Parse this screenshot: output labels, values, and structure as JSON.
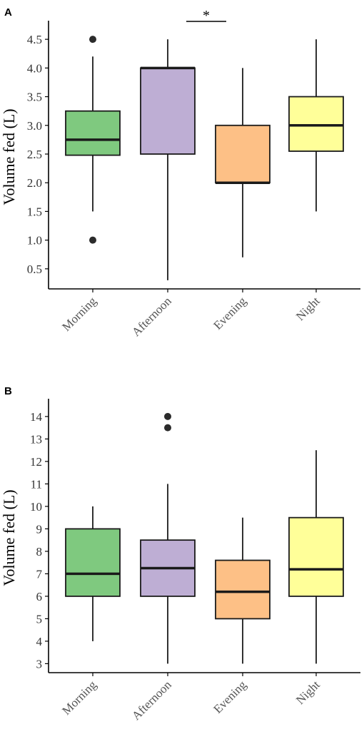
{
  "colors": {
    "Morning": "#7fc97f",
    "Afternoon": "#beaed4",
    "Evening": "#fdc086",
    "Night": "#ffff99"
  },
  "chart_data": [
    {
      "type": "box",
      "panel": "A",
      "ylabel": "Volume fed (L)",
      "xlabel": "",
      "categories": [
        "Morning",
        "Afternoon",
        "Evening",
        "Night"
      ],
      "ylim": [
        0.15,
        4.75
      ],
      "yticks": [
        0.5,
        1.0,
        1.5,
        2.0,
        2.5,
        3.0,
        3.5,
        4.0,
        4.5
      ],
      "ytick_labels": [
        "0.5",
        "1.0",
        "1.5",
        "2.0",
        "2.5",
        "3.0",
        "3.5",
        "4.0",
        "4.5"
      ],
      "boxes": [
        {
          "category": "Morning",
          "min": 1.5,
          "q1": 2.48,
          "median": 2.75,
          "q3": 3.25,
          "max": 4.2,
          "outliers": [
            4.5,
            1.0
          ]
        },
        {
          "category": "Afternoon",
          "min": 0.3,
          "q1": 2.5,
          "median": 4.0,
          "q3": 4.0,
          "max": 4.5,
          "outliers": []
        },
        {
          "category": "Evening",
          "min": 0.7,
          "q1": 2.0,
          "median": 2.0,
          "q3": 3.0,
          "max": 4.0,
          "outliers": []
        },
        {
          "category": "Night",
          "min": 1.5,
          "q1": 2.55,
          "median": 3.0,
          "q3": 3.5,
          "max": 4.5,
          "outliers": []
        }
      ],
      "annotation": {
        "text": "*",
        "from": "Afternoon",
        "to": "Evening"
      },
      "grid": false
    },
    {
      "type": "box",
      "panel": "B",
      "ylabel": "Volume fed (L)",
      "xlabel": "",
      "categories": [
        "Morning",
        "Afternoon",
        "Evening",
        "Night"
      ],
      "ylim": [
        2.6,
        14.6
      ],
      "yticks": [
        3,
        4,
        5,
        6,
        7,
        8,
        9,
        10,
        11,
        12,
        13,
        14
      ],
      "ytick_labels": [
        "3",
        "4",
        "5",
        "6",
        "7",
        "8",
        "9",
        "10",
        "11",
        "12",
        "13",
        "14"
      ],
      "boxes": [
        {
          "category": "Morning",
          "min": 4.0,
          "q1": 6.0,
          "median": 7.0,
          "q3": 9.0,
          "max": 10.0,
          "outliers": []
        },
        {
          "category": "Afternoon",
          "min": 3.0,
          "q1": 6.0,
          "median": 7.25,
          "q3": 8.5,
          "max": 11.0,
          "outliers": [
            14.0,
            13.5
          ]
        },
        {
          "category": "Evening",
          "min": 3.0,
          "q1": 5.0,
          "median": 6.2,
          "q3": 7.6,
          "max": 9.5,
          "outliers": []
        },
        {
          "category": "Night",
          "min": 3.0,
          "q1": 6.0,
          "median": 7.2,
          "q3": 9.5,
          "max": 12.5,
          "outliers": []
        }
      ],
      "grid": false
    }
  ]
}
